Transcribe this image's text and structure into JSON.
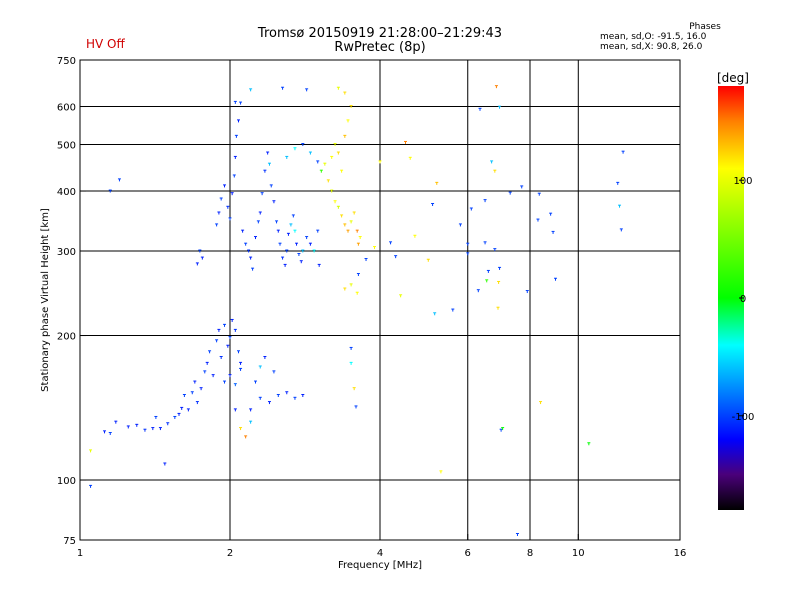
{
  "status": {
    "hv": "HV Off",
    "hv_color": "#d00000"
  },
  "phase_info": {
    "title": "Phases",
    "line1": "mean, sd,O: -91.5, 16.0",
    "line2": "mean, sd,X:  90.8, 26.0"
  },
  "colorbar": {
    "unit_label": "[deg]",
    "ticks": [
      {
        "value": 100,
        "label": "100"
      },
      {
        "value": 0,
        "label": "0"
      },
      {
        "value": -100,
        "label": "-100"
      }
    ],
    "range": [
      -180,
      180
    ],
    "stops": [
      {
        "value": -180,
        "color": "#000000"
      },
      {
        "value": -150,
        "color": "#4a007a"
      },
      {
        "value": -120,
        "color": "#0000ff"
      },
      {
        "value": -40,
        "color": "#00ffff"
      },
      {
        "value": 0,
        "color": "#00ff00"
      },
      {
        "value": 110,
        "color": "#ffff00"
      },
      {
        "value": 150,
        "color": "#ff8000"
      },
      {
        "value": 180,
        "color": "#ff0000"
      }
    ]
  },
  "chart_data": {
    "type": "scatter",
    "title": "Tromsø 20150919 21:28:00–21:29:43",
    "subtitle": "RwPretec (8p)",
    "xlabel": "Frequency [MHz]",
    "ylabel": "Stationary phase Virtual Height [km]",
    "xscale": "log",
    "yscale": "log",
    "xlim": [
      1,
      16
    ],
    "ylim": [
      75,
      750
    ],
    "grid": true,
    "x_ticks": [
      {
        "v": 1,
        "l": "1"
      },
      {
        "v": 2,
        "l": "2"
      },
      {
        "v": 4,
        "l": "4"
      },
      {
        "v": 6,
        "l": "6"
      },
      {
        "v": 8,
        "l": "8"
      },
      {
        "v": 10,
        "l": "10"
      },
      {
        "v": 16,
        "l": "16"
      }
    ],
    "x_grid": [
      2,
      4,
      6,
      8,
      10
    ],
    "y_ticks": [
      {
        "v": 75,
        "l": "75"
      },
      {
        "v": 100,
        "l": "100"
      },
      {
        "v": 200,
        "l": "200"
      },
      {
        "v": 300,
        "l": "300"
      },
      {
        "v": 400,
        "l": "400"
      },
      {
        "v": 500,
        "l": "500"
      },
      {
        "v": 600,
        "l": "600"
      },
      {
        "v": 750,
        "l": "750"
      }
    ],
    "y_grid": [
      100,
      200,
      300,
      400,
      500,
      600
    ],
    "point_fields": [
      "freq_mhz",
      "height_km",
      "phase_deg"
    ],
    "points": [
      [
        1.05,
        97,
        -100
      ],
      [
        1.12,
        126,
        -110
      ],
      [
        1.15,
        125,
        -100
      ],
      [
        1.18,
        132,
        -110
      ],
      [
        1.2,
        422,
        -100
      ],
      [
        1.25,
        129,
        -110
      ],
      [
        1.3,
        130,
        -110
      ],
      [
        1.35,
        127,
        -105
      ],
      [
        1.4,
        128,
        -110
      ],
      [
        1.42,
        135,
        -100
      ],
      [
        1.45,
        128,
        -110
      ],
      [
        1.48,
        108,
        -110
      ],
      [
        1.5,
        131,
        -105
      ],
      [
        1.55,
        135,
        -100
      ],
      [
        1.58,
        137,
        -110
      ],
      [
        1.6,
        141,
        -110
      ],
      [
        1.62,
        150,
        -100
      ],
      [
        1.65,
        140,
        -110
      ],
      [
        1.68,
        152,
        -100
      ],
      [
        1.7,
        160,
        -110
      ],
      [
        1.72,
        145,
        -105
      ],
      [
        1.75,
        155,
        -110
      ],
      [
        1.78,
        168,
        -100
      ],
      [
        1.8,
        175,
        -110
      ],
      [
        1.82,
        185,
        -100
      ],
      [
        1.85,
        165,
        -110
      ],
      [
        1.88,
        195,
        -100
      ],
      [
        1.9,
        205,
        -110
      ],
      [
        1.92,
        180,
        -105
      ],
      [
        1.95,
        210,
        -100
      ],
      [
        1.98,
        190,
        -110
      ],
      [
        2.0,
        198,
        -100
      ],
      [
        2.02,
        215,
        -110
      ],
      [
        2.05,
        205,
        -105
      ],
      [
        2.08,
        185,
        -100
      ],
      [
        2.1,
        175,
        -110
      ],
      [
        1.72,
        282,
        -110
      ],
      [
        1.74,
        300,
        -100
      ],
      [
        1.76,
        290,
        -110
      ],
      [
        1.88,
        340,
        -100
      ],
      [
        1.9,
        360,
        -110
      ],
      [
        1.92,
        385,
        -100
      ],
      [
        1.95,
        410,
        -110
      ],
      [
        1.98,
        370,
        -105
      ],
      [
        2.0,
        350,
        -100
      ],
      [
        2.02,
        395,
        -110
      ],
      [
        2.04,
        430,
        -100
      ],
      [
        2.05,
        470,
        -110
      ],
      [
        2.06,
        520,
        -100
      ],
      [
        2.08,
        560,
        -110
      ],
      [
        2.1,
        610,
        -100
      ],
      [
        2.12,
        330,
        -110
      ],
      [
        2.15,
        310,
        -100
      ],
      [
        2.18,
        300,
        -105
      ],
      [
        2.2,
        290,
        -110
      ],
      [
        2.22,
        275,
        -100
      ],
      [
        2.25,
        320,
        -110
      ],
      [
        2.28,
        345,
        -100
      ],
      [
        2.3,
        360,
        -110
      ],
      [
        2.32,
        395,
        -100
      ],
      [
        2.35,
        440,
        -105
      ],
      [
        2.38,
        480,
        -110
      ],
      [
        2.4,
        455,
        -60
      ],
      [
        2.42,
        410,
        -100
      ],
      [
        2.45,
        380,
        -110
      ],
      [
        2.48,
        345,
        -100
      ],
      [
        2.5,
        330,
        -110
      ],
      [
        2.52,
        310,
        -100
      ],
      [
        2.55,
        290,
        -105
      ],
      [
        2.58,
        280,
        -110
      ],
      [
        2.6,
        300,
        -100
      ],
      [
        2.62,
        325,
        -110
      ],
      [
        2.65,
        340,
        -60
      ],
      [
        2.68,
        355,
        -100
      ],
      [
        2.7,
        330,
        -40
      ],
      [
        2.72,
        310,
        -110
      ],
      [
        2.75,
        295,
        -100
      ],
      [
        2.78,
        285,
        -110
      ],
      [
        2.8,
        300,
        -60
      ],
      [
        2.85,
        320,
        -100
      ],
      [
        2.9,
        310,
        -110
      ],
      [
        2.95,
        300,
        -40
      ],
      [
        3.0,
        330,
        -100
      ],
      [
        3.02,
        280,
        -110
      ],
      [
        2.6,
        470,
        -60
      ],
      [
        2.7,
        490,
        -40
      ],
      [
        2.8,
        500,
        -100
      ],
      [
        2.9,
        480,
        -60
      ],
      [
        3.0,
        460,
        -100
      ],
      [
        3.05,
        440,
        20
      ],
      [
        3.1,
        455,
        100
      ],
      [
        3.15,
        420,
        120
      ],
      [
        3.2,
        470,
        110
      ],
      [
        3.25,
        500,
        100
      ],
      [
        3.3,
        480,
        120
      ],
      [
        3.35,
        440,
        110
      ],
      [
        3.4,
        520,
        130
      ],
      [
        3.45,
        560,
        110
      ],
      [
        3.5,
        600,
        120
      ],
      [
        3.2,
        400,
        100
      ],
      [
        3.25,
        380,
        110
      ],
      [
        3.3,
        370,
        90
      ],
      [
        3.35,
        355,
        120
      ],
      [
        3.4,
        340,
        130
      ],
      [
        3.45,
        330,
        140
      ],
      [
        3.5,
        345,
        100
      ],
      [
        3.55,
        360,
        120
      ],
      [
        3.6,
        330,
        150
      ],
      [
        3.62,
        310,
        140
      ],
      [
        3.65,
        320,
        110
      ],
      [
        3.4,
        250,
        120
      ],
      [
        3.5,
        255,
        100
      ],
      [
        3.6,
        245,
        110
      ],
      [
        3.62,
        268,
        -100
      ],
      [
        1.95,
        160,
        -100
      ],
      [
        2.0,
        165,
        -110
      ],
      [
        2.05,
        158,
        -90
      ],
      [
        2.1,
        170,
        -100
      ],
      [
        2.2,
        140,
        -110
      ],
      [
        2.3,
        148,
        -100
      ],
      [
        2.4,
        145,
        -110
      ],
      [
        2.5,
        150,
        -100
      ],
      [
        2.6,
        152,
        -110
      ],
      [
        2.7,
        148,
        -100
      ],
      [
        2.8,
        150,
        -110
      ],
      [
        2.3,
        172,
        -60
      ],
      [
        2.05,
        140,
        -110
      ],
      [
        2.1,
        128,
        120
      ],
      [
        2.15,
        123,
        150
      ],
      [
        2.2,
        132,
        -60
      ],
      [
        2.25,
        160,
        -100
      ],
      [
        2.35,
        180,
        -110
      ],
      [
        2.45,
        168,
        -100
      ],
      [
        2.55,
        655,
        -100
      ],
      [
        2.85,
        650,
        -100
      ],
      [
        3.3,
        655,
        100
      ],
      [
        3.4,
        640,
        120
      ],
      [
        2.2,
        650,
        -60
      ],
      [
        2.05,
        612,
        -100
      ],
      [
        3.75,
        288,
        -100
      ],
      [
        3.9,
        305,
        110
      ],
      [
        4.0,
        460,
        110
      ],
      [
        4.2,
        312,
        -100
      ],
      [
        4.3,
        292,
        -100
      ],
      [
        4.4,
        242,
        100
      ],
      [
        4.5,
        505,
        150
      ],
      [
        4.6,
        468,
        110
      ],
      [
        4.7,
        322,
        110
      ],
      [
        5.0,
        287,
        120
      ],
      [
        5.1,
        375,
        -100
      ],
      [
        5.15,
        222,
        -60
      ],
      [
        5.2,
        415,
        130
      ],
      [
        5.3,
        104,
        110
      ],
      [
        5.6,
        226,
        -100
      ],
      [
        5.8,
        340,
        -100
      ],
      [
        6.0,
        310,
        -100
      ],
      [
        6.0,
        296,
        -100
      ],
      [
        6.1,
        367,
        -100
      ],
      [
        6.3,
        248,
        -100
      ],
      [
        6.35,
        592,
        -100
      ],
      [
        6.5,
        382,
        -100
      ],
      [
        6.5,
        312,
        -100
      ],
      [
        6.55,
        260,
        20
      ],
      [
        6.6,
        272,
        -100
      ],
      [
        6.7,
        460,
        -60
      ],
      [
        6.8,
        440,
        120
      ],
      [
        6.8,
        302,
        -100
      ],
      [
        6.85,
        660,
        150
      ],
      [
        6.9,
        228,
        120
      ],
      [
        6.92,
        258,
        120
      ],
      [
        6.95,
        598,
        -60
      ],
      [
        6.95,
        276,
        -100
      ],
      [
        7.0,
        127,
        -100
      ],
      [
        7.05,
        128,
        0
      ],
      [
        7.3,
        396,
        -100
      ],
      [
        7.55,
        77,
        -100
      ],
      [
        7.7,
        408,
        -100
      ],
      [
        7.9,
        247,
        -100
      ],
      [
        8.3,
        348,
        -100
      ],
      [
        8.35,
        394,
        -100
      ],
      [
        8.4,
        145,
        120
      ],
      [
        8.8,
        358,
        -100
      ],
      [
        8.9,
        328,
        -100
      ],
      [
        9.0,
        262,
        -100
      ],
      [
        10.5,
        119,
        0
      ],
      [
        12.0,
        415,
        -100
      ],
      [
        12.1,
        372,
        -60
      ],
      [
        12.2,
        332,
        -100
      ],
      [
        12.3,
        482,
        -100
      ],
      [
        3.5,
        188,
        -100
      ],
      [
        3.5,
        175,
        -40
      ],
      [
        3.55,
        155,
        120
      ],
      [
        3.58,
        142,
        -100
      ],
      [
        1.15,
        400,
        -100
      ],
      [
        1.05,
        115,
        100
      ]
    ]
  }
}
